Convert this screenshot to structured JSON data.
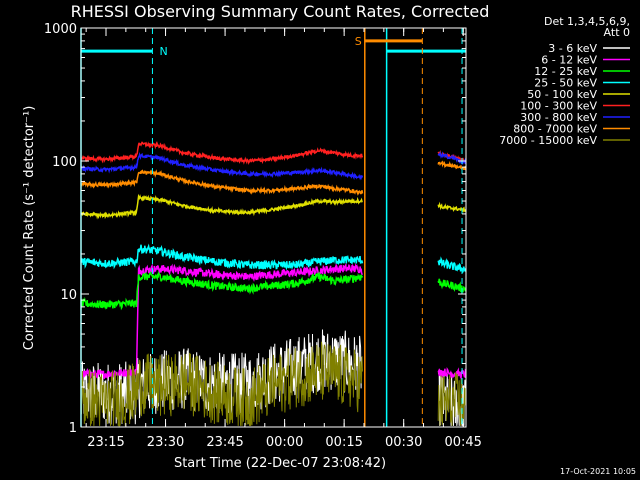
{
  "chart_data": {
    "type": "line",
    "title": "RHESSI Observing Summary Count Rates, Corrected",
    "xlabel": "Start Time (22-Dec-07 23:08:42)",
    "ylabel": "Corrected Count Rate (s⁻¹ detector⁻¹)",
    "yscale": "log",
    "ylim": [
      1,
      1000
    ],
    "y_ticks": [
      "1",
      "10",
      "100",
      "1000"
    ],
    "xlim_minutes_from_start": [
      0,
      97
    ],
    "x_ticks": [
      {
        "label": "23:15",
        "minute": 6.3
      },
      {
        "label": "23:30",
        "minute": 21.3
      },
      {
        "label": "23:45",
        "minute": 36.3
      },
      {
        "label": "00:00",
        "minute": 51.3
      },
      {
        "label": "00:15",
        "minute": 66.3
      },
      {
        "label": "00:30",
        "minute": 81.3
      },
      {
        "label": "00:45",
        "minute": 96.3
      }
    ],
    "legend_header": [
      "Det 1,3,4,5,6,9,",
      "Att 0"
    ],
    "legend_position": "top-right",
    "flags": [
      {
        "label": "N",
        "color": "#00ffff",
        "segments": [
          [
            0,
            18
          ],
          [
            77,
            97
          ]
        ],
        "level": 670,
        "dashed_at": [
          18,
          96
        ]
      },
      {
        "label": "S",
        "color": "#ff8c00",
        "segments": [
          [
            71.5,
            86
          ]
        ],
        "level": 800,
        "dashed_at": [
          86
        ]
      }
    ],
    "data_gap_minutes": [
      71,
      90
    ],
    "x": [
      0,
      6,
      14,
      14.5,
      20,
      26,
      34,
      42,
      48,
      54,
      60,
      64,
      68,
      70.5,
      90,
      91,
      94,
      96
    ],
    "series": [
      {
        "name": "3 - 6 keV",
        "color": "#ffffff",
        "values": [
          1.8,
          1.8,
          1.8,
          2,
          2.2,
          2.3,
          2.1,
          2.1,
          2.5,
          2.8,
          3.2,
          3.2,
          3,
          2.8,
          1.5,
          1.6,
          1.4,
          1.4
        ]
      },
      {
        "name": "6 - 12 keV",
        "color": "#ff00ff",
        "values": [
          2.5,
          2.5,
          2.6,
          15,
          15.5,
          15,
          14,
          13.5,
          14,
          14.5,
          15,
          15.5,
          15.5,
          15.5,
          2.5,
          2.6,
          2.5,
          2.5
        ]
      },
      {
        "name": "12 - 25 keV",
        "color": "#00ff00",
        "values": [
          8.5,
          8.3,
          8.5,
          13.5,
          13.5,
          12.5,
          11.5,
          11,
          11.5,
          12,
          13.5,
          12.5,
          13,
          13.5,
          12.5,
          12,
          11.5,
          11
        ]
      },
      {
        "name": "25 - 50 keV",
        "color": "#00ffff",
        "values": [
          17.5,
          17,
          17.5,
          22,
          21,
          19,
          17.5,
          16.5,
          16.5,
          16.5,
          17.5,
          18,
          18,
          18,
          17.5,
          17,
          16,
          15.5
        ]
      },
      {
        "name": "50 - 100 keV",
        "color": "#e0e000",
        "values": [
          40,
          39,
          41,
          53,
          51,
          46,
          42,
          41,
          43,
          46,
          50,
          49,
          50,
          50,
          47,
          45,
          44,
          43
        ]
      },
      {
        "name": "100 - 300 keV",
        "color": "#ff2020",
        "values": [
          105,
          103,
          108,
          135,
          130,
          115,
          105,
          100,
          103,
          110,
          120,
          115,
          110,
          110,
          115,
          112,
          108,
          100
        ]
      },
      {
        "name": "300 - 800 keV",
        "color": "#2020ff",
        "values": [
          88,
          86,
          90,
          110,
          105,
          93,
          85,
          80,
          80,
          82,
          85,
          82,
          78,
          75,
          112,
          110,
          105,
          98
        ]
      },
      {
        "name": "800 - 7000 keV",
        "color": "#ff8c00",
        "values": [
          67,
          66,
          69,
          83,
          80,
          71,
          64,
          60,
          60,
          62,
          65,
          62,
          60,
          58,
          95,
          95,
          92,
          88
        ]
      },
      {
        "name": "7000 - 15000 keV",
        "color": "#808000",
        "values": [
          1.7,
          1.5,
          1.8,
          2.1,
          2,
          2.2,
          1.8,
          1.6,
          2,
          2.4,
          2.6,
          2.5,
          2.3,
          2.2,
          1.5,
          1.5,
          1.5,
          1.5
        ]
      }
    ],
    "timestamp": "17-Oct-2021 10:05"
  }
}
